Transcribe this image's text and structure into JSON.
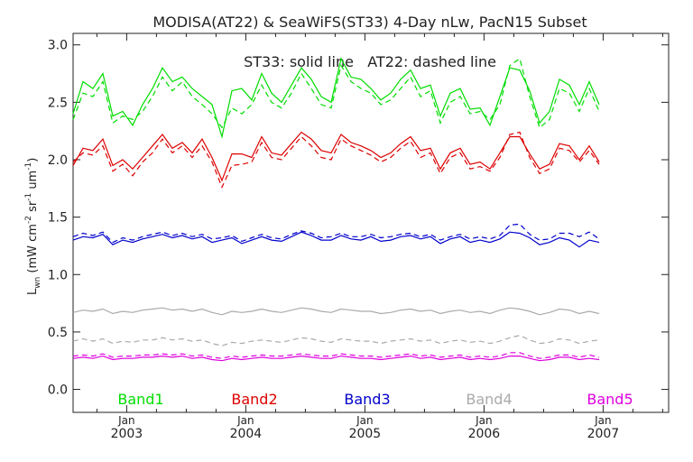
{
  "chart_data": {
    "type": "line",
    "title": "MODISA(AT22) & SeaWiFS(ST33) 4-Day nLw, PacN15 Subset",
    "annotation": "ST33: solid line   AT22: dashed line",
    "ylabel": "L_wn (mW cm^-2 sr^-1 um^-1)",
    "ylabel_parts": {
      "main": "L",
      "sub": "wn",
      "unit_pre": " (mW cm",
      "sup1": "-2",
      "mid1": " sr",
      "sup2": "-1",
      "mid2": " um",
      "sup3": "-1",
      "unit_post": ")"
    },
    "ylim": [
      -0.2,
      3.1
    ],
    "xlim": [
      2002.55,
      2007.55
    ],
    "yticks": [
      0.0,
      0.5,
      1.0,
      1.5,
      2.0,
      2.5,
      3.0
    ],
    "ytick_labels": [
      "0.0",
      "0.5",
      "1.0",
      "1.5",
      "2.0",
      "2.5",
      "3.0"
    ],
    "xticks": [
      {
        "x": 2003.0,
        "top": "Jan",
        "bottom": "2003"
      },
      {
        "x": 2004.0,
        "top": "Jan",
        "bottom": "2004"
      },
      {
        "x": 2005.0,
        "top": "Jan",
        "bottom": "2005"
      },
      {
        "x": 2006.0,
        "top": "Jan",
        "bottom": "2006"
      },
      {
        "x": 2007.0,
        "top": "Jan",
        "bottom": "2007"
      }
    ],
    "grid": false,
    "legend_placement": "bottom",
    "x_start": 2002.55,
    "x_step": 0.08333,
    "series": [
      {
        "name": "Band1",
        "color": "#00dd00",
        "solid": [
          2.4,
          2.68,
          2.62,
          2.75,
          2.38,
          2.42,
          2.3,
          2.48,
          2.62,
          2.8,
          2.68,
          2.72,
          2.62,
          2.55,
          2.48,
          2.2,
          2.6,
          2.62,
          2.52,
          2.75,
          2.58,
          2.5,
          2.65,
          2.8,
          2.7,
          2.55,
          2.5,
          2.88,
          2.72,
          2.7,
          2.62,
          2.52,
          2.58,
          2.7,
          2.78,
          2.62,
          2.65,
          2.38,
          2.58,
          2.62,
          2.44,
          2.45,
          2.3,
          2.55,
          2.8,
          2.78,
          2.6,
          2.32,
          2.42,
          2.7,
          2.65,
          2.48,
          2.68,
          2.48
        ],
        "dashed": [
          2.35,
          2.58,
          2.55,
          2.68,
          2.32,
          2.38,
          2.35,
          2.42,
          2.55,
          2.72,
          2.6,
          2.68,
          2.55,
          2.48,
          2.4,
          2.28,
          2.45,
          2.4,
          2.48,
          2.65,
          2.5,
          2.45,
          2.58,
          2.75,
          2.62,
          2.48,
          2.45,
          2.82,
          2.68,
          2.62,
          2.58,
          2.48,
          2.52,
          2.62,
          2.72,
          2.55,
          2.6,
          2.32,
          2.5,
          2.55,
          2.4,
          2.42,
          2.35,
          2.48,
          2.82,
          2.88,
          2.55,
          2.28,
          2.35,
          2.62,
          2.58,
          2.42,
          2.62,
          2.42
        ]
      },
      {
        "name": "Band2",
        "color": "#dd0000",
        "solid": [
          1.95,
          2.1,
          2.08,
          2.18,
          1.95,
          2.0,
          1.92,
          2.02,
          2.12,
          2.22,
          2.1,
          2.15,
          2.06,
          2.18,
          2.02,
          1.82,
          2.05,
          2.05,
          2.02,
          2.2,
          2.06,
          2.04,
          2.14,
          2.24,
          2.18,
          2.08,
          2.06,
          2.22,
          2.15,
          2.12,
          2.08,
          2.02,
          2.06,
          2.14,
          2.2,
          2.08,
          2.1,
          1.92,
          2.06,
          2.1,
          1.96,
          1.98,
          1.92,
          2.06,
          2.2,
          2.2,
          2.05,
          1.92,
          1.96,
          2.14,
          2.12,
          2.0,
          2.12,
          1.98
        ],
        "dashed": [
          1.98,
          2.06,
          2.04,
          2.12,
          1.9,
          1.96,
          1.86,
          1.98,
          2.06,
          2.18,
          2.06,
          2.12,
          2.02,
          2.12,
          1.98,
          1.76,
          1.95,
          1.96,
          1.98,
          2.15,
          2.02,
          2.0,
          2.1,
          2.2,
          2.12,
          2.02,
          2.0,
          2.18,
          2.12,
          2.08,
          2.04,
          1.98,
          2.02,
          2.1,
          2.16,
          2.02,
          2.06,
          1.88,
          2.02,
          2.06,
          1.92,
          1.94,
          1.9,
          2.02,
          2.22,
          2.24,
          2.02,
          1.88,
          1.92,
          2.1,
          2.08,
          1.98,
          2.08,
          1.96
        ]
      },
      {
        "name": "Band3",
        "color": "#0000cc",
        "solid": [
          1.3,
          1.33,
          1.32,
          1.35,
          1.26,
          1.3,
          1.28,
          1.31,
          1.33,
          1.35,
          1.32,
          1.34,
          1.31,
          1.33,
          1.28,
          1.3,
          1.32,
          1.27,
          1.3,
          1.33,
          1.3,
          1.29,
          1.33,
          1.37,
          1.34,
          1.3,
          1.3,
          1.34,
          1.31,
          1.3,
          1.33,
          1.29,
          1.3,
          1.33,
          1.34,
          1.31,
          1.33,
          1.27,
          1.31,
          1.33,
          1.28,
          1.3,
          1.28,
          1.31,
          1.37,
          1.36,
          1.32,
          1.26,
          1.28,
          1.32,
          1.3,
          1.24,
          1.3,
          1.28
        ],
        "dashed": [
          1.33,
          1.36,
          1.34,
          1.37,
          1.28,
          1.32,
          1.3,
          1.33,
          1.35,
          1.37,
          1.34,
          1.36,
          1.33,
          1.35,
          1.31,
          1.32,
          1.34,
          1.29,
          1.32,
          1.35,
          1.32,
          1.31,
          1.35,
          1.38,
          1.36,
          1.32,
          1.33,
          1.36,
          1.33,
          1.33,
          1.35,
          1.32,
          1.33,
          1.35,
          1.36,
          1.33,
          1.35,
          1.3,
          1.33,
          1.35,
          1.31,
          1.33,
          1.31,
          1.34,
          1.43,
          1.44,
          1.35,
          1.3,
          1.31,
          1.36,
          1.36,
          1.33,
          1.37,
          1.31
        ]
      },
      {
        "name": "Band4",
        "color": "#aaaaaa",
        "solid": [
          0.67,
          0.69,
          0.68,
          0.7,
          0.66,
          0.68,
          0.67,
          0.69,
          0.7,
          0.71,
          0.69,
          0.7,
          0.68,
          0.7,
          0.67,
          0.65,
          0.68,
          0.67,
          0.68,
          0.7,
          0.68,
          0.67,
          0.69,
          0.71,
          0.7,
          0.68,
          0.67,
          0.7,
          0.69,
          0.68,
          0.68,
          0.66,
          0.67,
          0.69,
          0.7,
          0.68,
          0.69,
          0.66,
          0.68,
          0.69,
          0.67,
          0.68,
          0.66,
          0.69,
          0.71,
          0.7,
          0.68,
          0.65,
          0.67,
          0.7,
          0.69,
          0.66,
          0.68,
          0.66
        ],
        "dashed": [
          0.42,
          0.44,
          0.42,
          0.44,
          0.4,
          0.42,
          0.41,
          0.43,
          0.43,
          0.45,
          0.43,
          0.44,
          0.42,
          0.43,
          0.4,
          0.38,
          0.41,
          0.4,
          0.42,
          0.43,
          0.42,
          0.41,
          0.43,
          0.45,
          0.44,
          0.42,
          0.41,
          0.44,
          0.43,
          0.42,
          0.42,
          0.4,
          0.42,
          0.43,
          0.44,
          0.42,
          0.43,
          0.4,
          0.42,
          0.43,
          0.41,
          0.42,
          0.4,
          0.42,
          0.45,
          0.47,
          0.43,
          0.4,
          0.41,
          0.44,
          0.43,
          0.4,
          0.42,
          0.43
        ]
      },
      {
        "name": "Band5",
        "color": "#dd00dd",
        "solid": [
          0.27,
          0.28,
          0.27,
          0.29,
          0.26,
          0.27,
          0.27,
          0.28,
          0.28,
          0.29,
          0.28,
          0.29,
          0.27,
          0.28,
          0.26,
          0.25,
          0.27,
          0.26,
          0.27,
          0.28,
          0.27,
          0.27,
          0.28,
          0.29,
          0.28,
          0.27,
          0.27,
          0.29,
          0.28,
          0.27,
          0.27,
          0.26,
          0.27,
          0.28,
          0.29,
          0.27,
          0.28,
          0.26,
          0.27,
          0.28,
          0.26,
          0.27,
          0.26,
          0.27,
          0.29,
          0.29,
          0.27,
          0.25,
          0.26,
          0.28,
          0.28,
          0.26,
          0.27,
          0.26
        ],
        "dashed": [
          0.29,
          0.3,
          0.29,
          0.31,
          0.28,
          0.29,
          0.29,
          0.3,
          0.3,
          0.31,
          0.3,
          0.31,
          0.29,
          0.3,
          0.28,
          0.27,
          0.29,
          0.28,
          0.29,
          0.3,
          0.29,
          0.29,
          0.3,
          0.31,
          0.3,
          0.29,
          0.29,
          0.31,
          0.3,
          0.29,
          0.29,
          0.28,
          0.29,
          0.3,
          0.31,
          0.29,
          0.3,
          0.28,
          0.29,
          0.3,
          0.28,
          0.29,
          0.28,
          0.29,
          0.32,
          0.32,
          0.29,
          0.27,
          0.28,
          0.3,
          0.3,
          0.28,
          0.3,
          0.28
        ]
      }
    ]
  }
}
